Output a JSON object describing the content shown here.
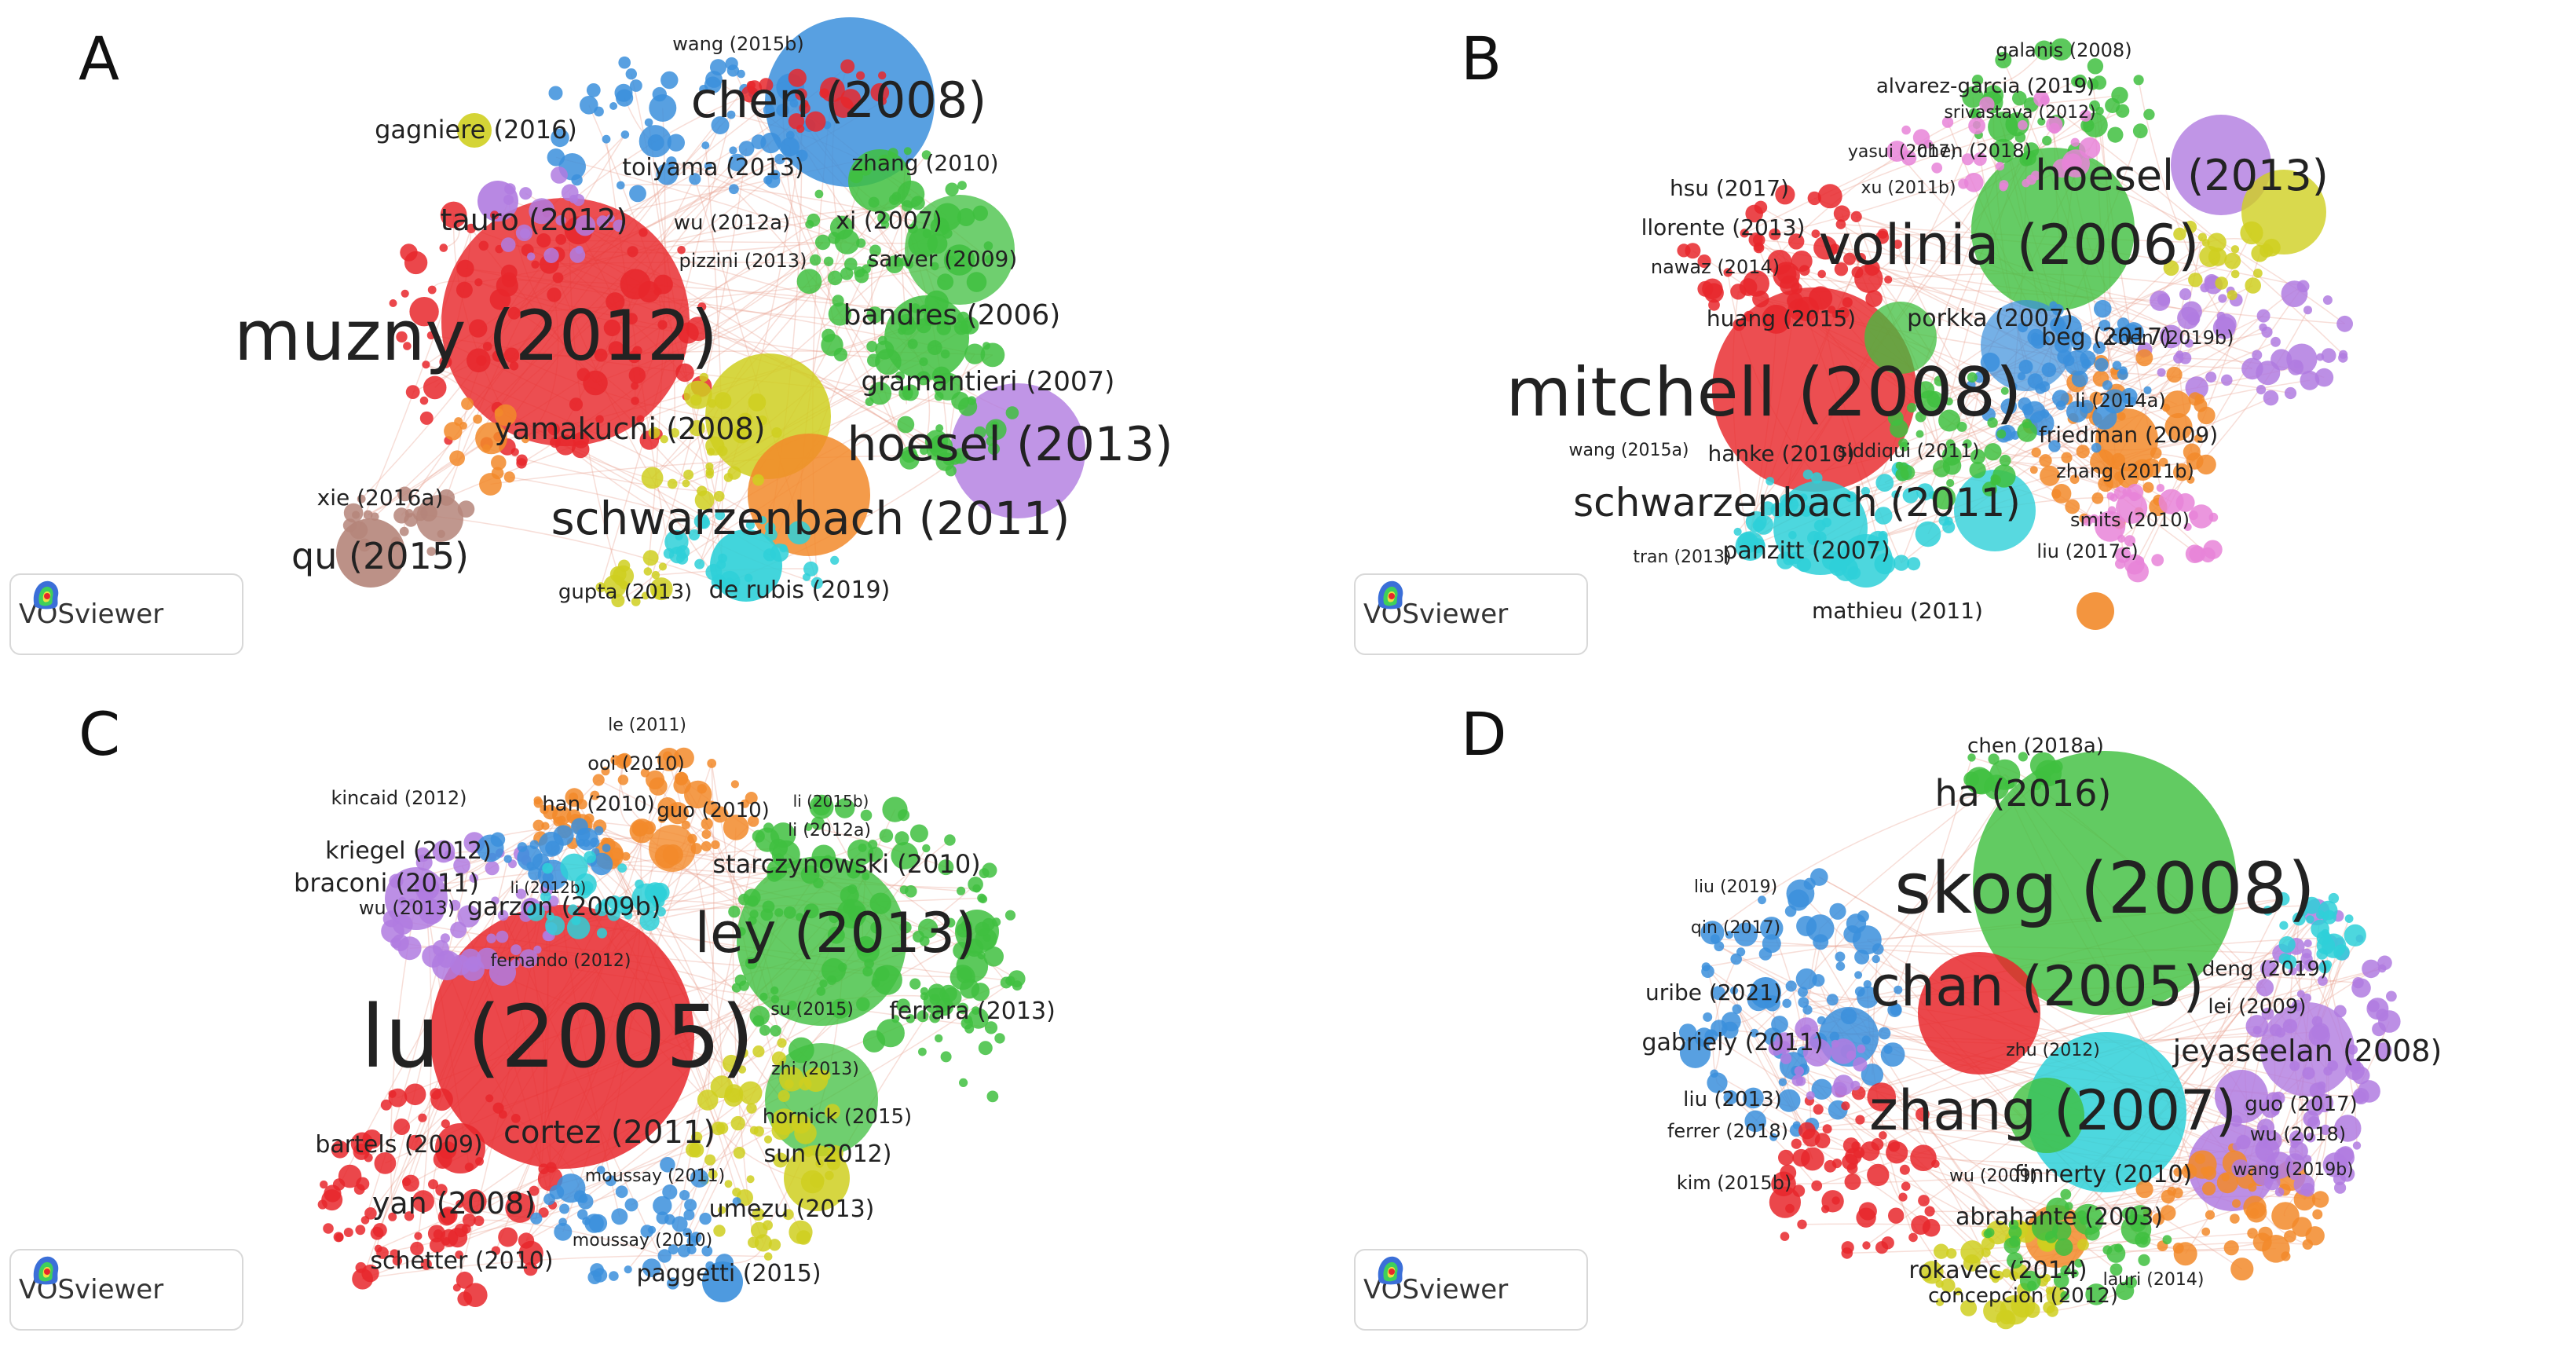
{
  "colors": {
    "red": "#e8272b",
    "green": "#3fbf3f",
    "blue": "#3b8fdc",
    "yellow": "#cfcf20",
    "purple": "#b07be0",
    "cyan": "#2ed0d8",
    "orange": "#f28a2a",
    "brown": "#b5857a",
    "pink": "#e884d8",
    "edge": "#e8a090"
  },
  "badge_label": "VOSviewer",
  "panels": [
    {
      "letter": "A",
      "labels": [
        "wang (2015b)",
        "chen (2008)",
        "gagniere (2016)",
        "toiyama (2013)",
        "zhang (2010)",
        "tauro (2012)",
        "wu (2012a)",
        "xi (2007)",
        "pizzini (2013)",
        "sarver (2009)",
        "muzny (2012)",
        "bandres (2006)",
        "gramantieri (2007)",
        "yamakuchi (2008)",
        "hoesel (2013)",
        "xie (2016a)",
        "schwarzenbach (2011)",
        "qu (2015)",
        "gupta (2013)",
        "de rubis (2019)"
      ]
    },
    {
      "letter": "B",
      "labels": [
        "galanis (2008)",
        "alvarez-garcia (2019)",
        "srivastava (2012)",
        "yasui (2017)",
        "chen (2018)",
        "hoesel (2013)",
        "hsu (2017)",
        "xu (2011b)",
        "llorente (2013)",
        "volinia (2006)",
        "nawaz (2014)",
        "huang (2015)",
        "porkka (2007)",
        "beg (2017)",
        "chen (2019b)",
        "mitchell (2008)",
        "li (2014a)",
        "friedman (2009)",
        "wang (2015a)",
        "hanke (2010)",
        "siddiqui (2011)",
        "zhang (2011b)",
        "schwarzenbach (2011)",
        "smits (2010)",
        "panzitt (2007)",
        "liu (2017c)",
        "tran (2013)",
        "mathieu (2011)"
      ]
    },
    {
      "letter": "C",
      "labels": [
        "le (2011)",
        "ooi (2010)",
        "kincaid (2012)",
        "han (2010)",
        "guo (2010)",
        "li (2015b)",
        "li (2012a)",
        "kriegel (2012)",
        "starczynowski (2010)",
        "braconi (2011)",
        "li (2012b)",
        "wu (2013)",
        "garzon (2009b)",
        "ley (2013)",
        "fernando (2012)",
        "su (2015)",
        "ferrara (2013)",
        "lu (2005)",
        "zhi (2013)",
        "hornick (2015)",
        "cortez (2011)",
        "bartels (2009)",
        "sun (2012)",
        "moussay (2011)",
        "yan (2008)",
        "umezu (2013)",
        "moussay (2010)",
        "schetter (2010)",
        "paggetti (2015)"
      ]
    },
    {
      "letter": "D",
      "labels": [
        "chen (2018a)",
        "ha (2016)",
        "skog (2008)",
        "liu (2019)",
        "qin (2017)",
        "chan (2005)",
        "deng (2019)",
        "uribe (2021)",
        "lei (2009)",
        "gabriely (2011)",
        "zhu (2012)",
        "jeyaseelan (2008)",
        "liu (2013)",
        "zhang (2007)",
        "guo (2017)",
        "ferrer (2018)",
        "wu (2018)",
        "wu (2009)",
        "finnerty (2010)",
        "kim (2015b)",
        "wang (2019b)",
        "abrahante (2003)",
        "rokavec (2014)",
        "lauri (2014)",
        "concepcion (2012)"
      ]
    }
  ]
}
